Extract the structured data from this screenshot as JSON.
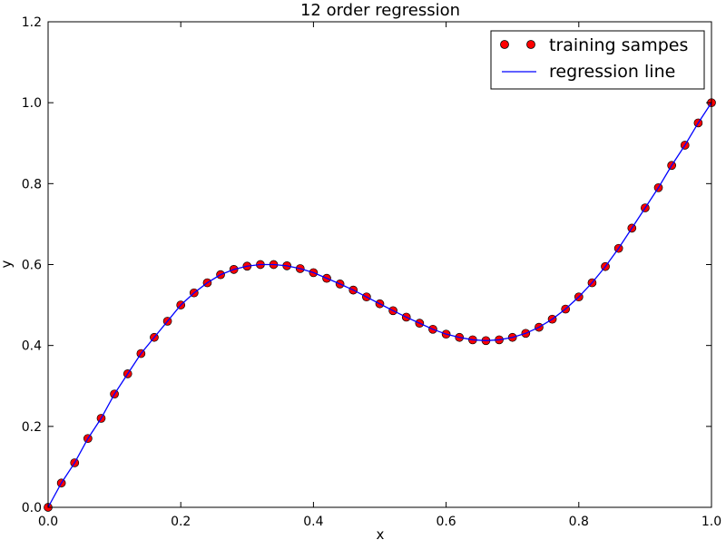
{
  "chart_data": {
    "type": "scatter",
    "title": "12 order regression",
    "xlabel": "x",
    "ylabel": "y",
    "xlim": [
      0.0,
      1.0
    ],
    "ylim": [
      0.0,
      1.2
    ],
    "grid": false,
    "legend_position": "top-right",
    "x_ticks": [
      "0.0",
      "0.2",
      "0.4",
      "0.6",
      "0.8",
      "1.0"
    ],
    "y_ticks": [
      "0.0",
      "0.2",
      "0.4",
      "0.6",
      "0.8",
      "1.0",
      "1.2"
    ],
    "x_tick_values": [
      0.0,
      0.2,
      0.4,
      0.6,
      0.8,
      1.0
    ],
    "y_tick_values": [
      0.0,
      0.2,
      0.4,
      0.6,
      0.8,
      1.0,
      1.2
    ],
    "series": [
      {
        "name": "training sampes",
        "kind": "scatter",
        "color": "#ff0000",
        "x": [
          0.0,
          0.02,
          0.04,
          0.06,
          0.08,
          0.1,
          0.12,
          0.14,
          0.16,
          0.18,
          0.2,
          0.22,
          0.24,
          0.26,
          0.28,
          0.3,
          0.32,
          0.34,
          0.36,
          0.38,
          0.4,
          0.42,
          0.44,
          0.46,
          0.48,
          0.5,
          0.52,
          0.54,
          0.56,
          0.58,
          0.6,
          0.62,
          0.64,
          0.66,
          0.68,
          0.7,
          0.72,
          0.74,
          0.76,
          0.78,
          0.8,
          0.82,
          0.84,
          0.86,
          0.88,
          0.9,
          0.92,
          0.94,
          0.96,
          0.98,
          1.0
        ],
        "y": [
          0.0,
          0.06,
          0.11,
          0.17,
          0.22,
          0.28,
          0.33,
          0.38,
          0.42,
          0.46,
          0.5,
          0.53,
          0.555,
          0.575,
          0.588,
          0.596,
          0.6,
          0.6,
          0.597,
          0.59,
          0.58,
          0.566,
          0.552,
          0.537,
          0.52,
          0.503,
          0.486,
          0.47,
          0.455,
          0.44,
          0.428,
          0.42,
          0.414,
          0.412,
          0.414,
          0.42,
          0.43,
          0.445,
          0.465,
          0.49,
          0.52,
          0.555,
          0.595,
          0.64,
          0.69,
          0.74,
          0.79,
          0.845,
          0.895,
          0.95,
          1.0
        ]
      },
      {
        "name": "regression line",
        "kind": "line",
        "color": "#0000ff",
        "x": [
          0.0,
          0.02,
          0.04,
          0.06,
          0.08,
          0.1,
          0.12,
          0.14,
          0.16,
          0.18,
          0.2,
          0.22,
          0.24,
          0.26,
          0.28,
          0.3,
          0.32,
          0.34,
          0.36,
          0.38,
          0.4,
          0.42,
          0.44,
          0.46,
          0.48,
          0.5,
          0.52,
          0.54,
          0.56,
          0.58,
          0.6,
          0.62,
          0.64,
          0.66,
          0.68,
          0.7,
          0.72,
          0.74,
          0.76,
          0.78,
          0.8,
          0.82,
          0.84,
          0.86,
          0.88,
          0.9,
          0.92,
          0.94,
          0.96,
          0.98,
          1.0
        ],
        "y": [
          0.0,
          0.06,
          0.11,
          0.17,
          0.22,
          0.28,
          0.33,
          0.38,
          0.42,
          0.46,
          0.5,
          0.53,
          0.555,
          0.575,
          0.588,
          0.596,
          0.6,
          0.6,
          0.597,
          0.59,
          0.58,
          0.566,
          0.552,
          0.537,
          0.52,
          0.503,
          0.486,
          0.47,
          0.455,
          0.44,
          0.428,
          0.42,
          0.414,
          0.412,
          0.414,
          0.42,
          0.43,
          0.445,
          0.465,
          0.49,
          0.52,
          0.555,
          0.595,
          0.64,
          0.69,
          0.74,
          0.79,
          0.845,
          0.895,
          0.95,
          1.0
        ]
      }
    ]
  }
}
